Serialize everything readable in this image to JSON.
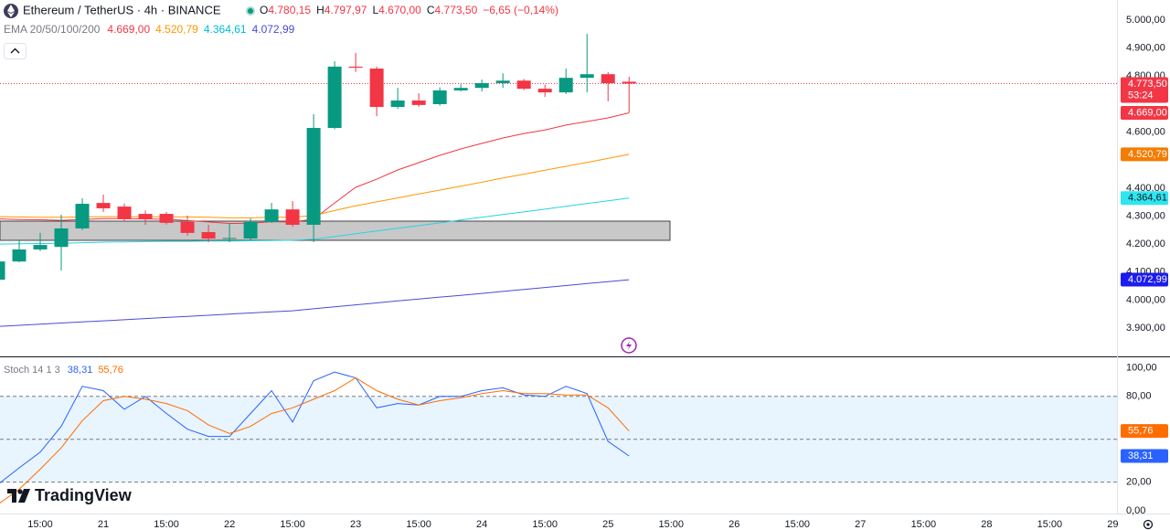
{
  "chart_data": {
    "type": "candlestick",
    "title": "Ethereum / TetherUS · 4h · BINANCE",
    "grid": false,
    "xlim": [
      0.087,
      53.2
    ],
    "xticks": [
      {
        "value": 2,
        "label": "15:00"
      },
      {
        "value": 5,
        "label": "21"
      },
      {
        "value": 8,
        "label": "15:00"
      },
      {
        "value": 11,
        "label": "22"
      },
      {
        "value": 14,
        "label": "15:00"
      },
      {
        "value": 17,
        "label": "23"
      },
      {
        "value": 20,
        "label": "15:00"
      },
      {
        "value": 23,
        "label": "24"
      },
      {
        "value": 26,
        "label": "15:00"
      },
      {
        "value": 29,
        "label": "25"
      },
      {
        "value": 32,
        "label": "15:00"
      },
      {
        "value": 35,
        "label": "26"
      },
      {
        "value": 38,
        "label": "15:00"
      },
      {
        "value": 41,
        "label": "27"
      },
      {
        "value": 44,
        "label": "15:00"
      },
      {
        "value": 47,
        "label": "28"
      },
      {
        "value": 50,
        "label": "15:00"
      },
      {
        "value": 53,
        "label": "29"
      }
    ],
    "ylim": [
      3799,
      5072
    ],
    "yticks": [
      {
        "value": 5000,
        "label": "5.000,00"
      },
      {
        "value": 4900,
        "label": "4.900,00"
      },
      {
        "value": 4800,
        "label": "4.800,00"
      },
      {
        "value": 4600,
        "label": "4.600,00"
      },
      {
        "value": 4400,
        "label": "4.400,00"
      },
      {
        "value": 4300,
        "label": "4.300,00"
      },
      {
        "value": 4200,
        "label": "4.200,00"
      },
      {
        "value": 4100,
        "label": "4.100,00"
      },
      {
        "value": 4000,
        "label": "4.000,00"
      },
      {
        "value": 3900,
        "label": "3.900,00"
      }
    ],
    "colors": {
      "up": "#089981",
      "down": "#f23645"
    },
    "open": [
      4073,
      4138,
      4181,
      4190,
      4256,
      4347,
      4334,
      4308,
      4308,
      4279,
      4243,
      4220,
      4220,
      4279,
      4324,
      4269,
      4615,
      4834,
      4827,
      4690,
      4713,
      4700,
      4749,
      4758,
      4775,
      4784,
      4755,
      4742,
      4794,
      4807,
      4780.15
    ],
    "high": [
      4140,
      4214,
      4240,
      4305,
      4364,
      4377,
      4345,
      4320,
      4315,
      4302,
      4269,
      4272,
      4292,
      4347,
      4354,
      4664,
      4853,
      4883,
      4834,
      4758,
      4739,
      4760,
      4771,
      4788,
      4810,
      4790,
      4770,
      4827,
      4951,
      4815,
      4797.97
    ],
    "low": [
      4070,
      4135,
      4175,
      4106,
      4250,
      4315,
      4280,
      4269,
      4270,
      4230,
      4207,
      4207,
      4215,
      4276,
      4262,
      4207,
      4610,
      4815,
      4657,
      4683,
      4690,
      4695,
      4745,
      4745,
      4758,
      4750,
      4726,
      4736,
      4742,
      4710,
      4670
    ],
    "close": [
      4138,
      4181,
      4197,
      4256,
      4344,
      4328,
      4289,
      4289,
      4276,
      4240,
      4220,
      4222,
      4279,
      4324,
      4269,
      4615,
      4834,
      4830,
      4690,
      4713,
      4697,
      4749,
      4758,
      4775,
      4784,
      4755,
      4742,
      4794,
      4807,
      4775,
      4773.5
    ],
    "ohlc_keys": {
      "open": "O",
      "high": "H",
      "low": "L",
      "close": "C"
    },
    "last_labels": {
      "open": "4.780,15",
      "high": "4.797,97",
      "low": "4.670,00",
      "close": "4.773,50"
    },
    "change_label": "−6,65 (−0,14%)",
    "countdown": "53:24",
    "ema_label": "EMA 20/50/100/200",
    "series": [
      {
        "color": "#f23645",
        "badge": "#f23645",
        "last_label": "4.669,00",
        "values": [
          4290,
          4288,
          4287,
          4285,
          4288,
          4291,
          4291,
          4290,
          4289,
          4284,
          4279,
          4274,
          4275,
          4280,
          4279,
          4289,
          4347,
          4403,
          4432,
          4465,
          4491,
          4517,
          4540,
          4560,
          4579,
          4595,
          4608,
          4625,
          4638,
          4651,
          4669
        ]
      },
      {
        "color": "#ff9800",
        "badge": "#f57c00",
        "last_label": "4.520,79",
        "values": [
          4298,
          4297,
          4296,
          4296,
          4297,
          4298,
          4298,
          4298,
          4298,
          4297,
          4296,
          4294,
          4294,
          4296,
          4296,
          4302,
          4320,
          4337,
          4351,
          4365,
          4379,
          4393,
          4407,
          4421,
          4436,
          4450,
          4464,
          4478,
          4492,
          4506,
          4520.79
        ]
      },
      {
        "color": "#26d4e6",
        "badge": "#2ee6f0",
        "last_label": "4.364,61",
        "values": [
          4200,
          4201,
          4202,
          4203,
          4205,
          4207,
          4208,
          4209,
          4210,
          4210,
          4211,
          4211,
          4212,
          4213,
          4214,
          4217,
          4227,
          4237,
          4247,
          4257,
          4266,
          4276,
          4286,
          4296,
          4306,
          4315,
          4325,
          4335,
          4345,
          4355,
          4364.61
        ]
      },
      {
        "color": "#4a4ad8",
        "badge": "#1c1cf0",
        "last_label": "4.072,99",
        "values": [
          3906,
          3910,
          3914,
          3918,
          3922,
          3926,
          3930,
          3934,
          3938,
          3942,
          3946,
          3950,
          3954,
          3958,
          3962,
          3969,
          3976,
          3983,
          3990,
          3997,
          4004,
          4011,
          4017,
          4024,
          4031,
          4038,
          4045,
          4052,
          4059,
          4066,
          4072.99
        ]
      }
    ],
    "stoch": {
      "type": "line",
      "label": "Stoch 14 1 3",
      "ylim": [
        -2,
        108
      ],
      "yticks": [
        {
          "value": 100,
          "label": "100,00"
        },
        {
          "value": 80,
          "label": "80,00"
        },
        {
          "value": 20,
          "label": "20,00"
        },
        {
          "value": 0,
          "label": "0,00"
        }
      ],
      "bands": [
        80,
        50,
        20
      ],
      "series": [
        {
          "color": "#2962ff",
          "last_label": "38,31",
          "values": [
            18.5,
            30,
            41,
            59,
            87,
            84,
            71,
            80,
            68,
            57,
            52,
            52,
            68,
            84,
            62,
            91,
            97,
            93,
            72,
            75,
            74,
            80,
            80,
            84,
            86,
            81,
            80,
            87,
            82,
            48.5,
            38.31
          ]
        },
        {
          "color": "#ff6d00",
          "last_label": "55,76",
          "values": [
            4.5,
            15,
            29,
            44,
            63,
            77,
            80,
            78,
            75,
            70,
            60,
            54,
            59,
            68,
            72,
            78,
            84,
            93,
            84,
            78,
            74,
            77,
            79,
            82,
            84,
            82,
            82,
            81,
            81,
            72,
            55.76
          ]
        }
      ]
    },
    "brand": "TradingView"
  }
}
